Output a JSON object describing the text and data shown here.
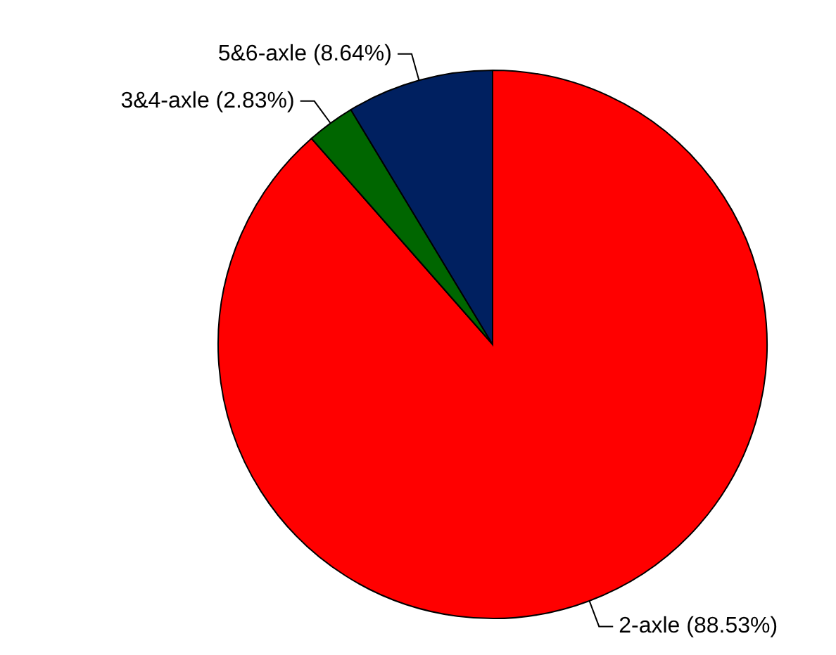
{
  "chart_data": {
    "type": "pie",
    "categories": [
      "2-axle (88.53%)",
      "3&4-axle (2.83%)",
      "5&6-axle (8.64%)"
    ],
    "values": [
      88.53,
      2.83,
      8.64
    ],
    "colors": [
      "#ff0000",
      "#006600",
      "#002060"
    ]
  }
}
